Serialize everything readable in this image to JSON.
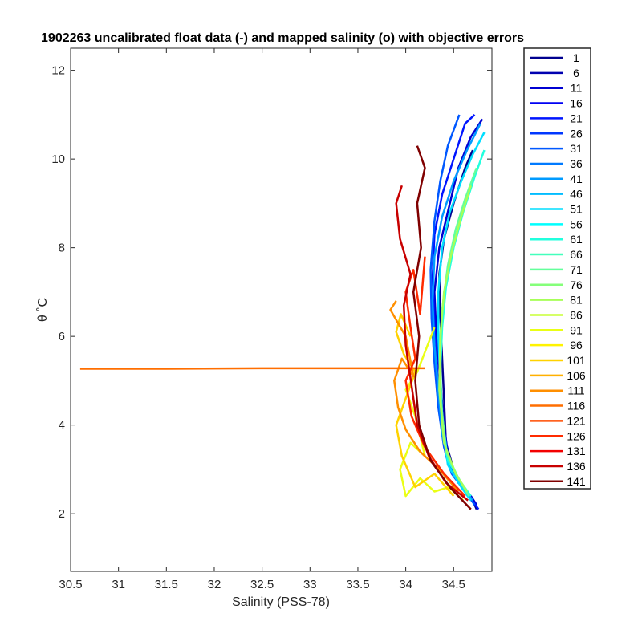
{
  "chart_data": {
    "type": "line",
    "title": "1902263 uncalibrated float data (-) and mapped salinity (o) with objective errors",
    "xlabel": "Salinity (PSS-78)",
    "ylabel": "θ ˚C",
    "xlim": [
      30.5,
      34.9
    ],
    "ylim": [
      0.7,
      12.5
    ],
    "x_ticks": [
      "30.5",
      "31",
      "31.5",
      "32",
      "32.5",
      "33",
      "33.5",
      "34",
      "34.5"
    ],
    "y_ticks": [
      "2",
      "4",
      "6",
      "8",
      "10",
      "12"
    ],
    "grid": false,
    "legend_position": "outside-right",
    "legend": [
      {
        "label": "1",
        "color": "#00008F"
      },
      {
        "label": "6",
        "color": "#0000B0"
      },
      {
        "label": "11",
        "color": "#0000D2"
      },
      {
        "label": "16",
        "color": "#0000F3"
      },
      {
        "label": "21",
        "color": "#0015FF"
      },
      {
        "label": "26",
        "color": "#0037FF"
      },
      {
        "label": "31",
        "color": "#0058FF"
      },
      {
        "label": "36",
        "color": "#007AFF"
      },
      {
        "label": "41",
        "color": "#009BFF"
      },
      {
        "label": "46",
        "color": "#00BCFF"
      },
      {
        "label": "51",
        "color": "#00DEFF"
      },
      {
        "label": "56",
        "color": "#00FFFF"
      },
      {
        "label": "61",
        "color": "#21FFDE"
      },
      {
        "label": "66",
        "color": "#43FFBC"
      },
      {
        "label": "71",
        "color": "#64FF9B"
      },
      {
        "label": "76",
        "color": "#85FF7A"
      },
      {
        "label": "81",
        "color": "#A7FF58"
      },
      {
        "label": "86",
        "color": "#C8FF37"
      },
      {
        "label": "91",
        "color": "#EAFF15"
      },
      {
        "label": "96",
        "color": "#FFF300"
      },
      {
        "label": "101",
        "color": "#FFD200"
      },
      {
        "label": "106",
        "color": "#FFB000"
      },
      {
        "label": "111",
        "color": "#FF8F00"
      },
      {
        "label": "116",
        "color": "#FF6E00"
      },
      {
        "label": "121",
        "color": "#FF4C00"
      },
      {
        "label": "126",
        "color": "#FF2B00"
      },
      {
        "label": "131",
        "color": "#F30000"
      },
      {
        "label": "136",
        "color": "#C80000"
      },
      {
        "label": "141",
        "color": "#800000"
      }
    ],
    "series": [
      {
        "color": "#00008F",
        "x": [
          34.74,
          34.7,
          34.6,
          34.5,
          34.42,
          34.4,
          34.38,
          34.36,
          34.35,
          34.4,
          34.5,
          34.62,
          34.7
        ],
        "y": [
          2.1,
          2.3,
          2.6,
          3.0,
          3.6,
          4.6,
          5.5,
          6.5,
          7.4,
          8.2,
          9.0,
          9.8,
          10.2
        ]
      },
      {
        "color": "#0000D2",
        "x": [
          34.74,
          34.68,
          34.55,
          34.45,
          34.4,
          34.36,
          34.32,
          34.3,
          34.35,
          34.45,
          34.55,
          34.68,
          34.8
        ],
        "y": [
          2.2,
          2.4,
          2.7,
          3.2,
          4.0,
          5.0,
          6.0,
          7.0,
          8.0,
          8.9,
          9.8,
          10.5,
          10.9
        ]
      },
      {
        "color": "#0015FF",
        "x": [
          34.76,
          34.66,
          34.52,
          34.42,
          34.36,
          34.33,
          34.3,
          34.28,
          34.3,
          34.38,
          34.5,
          34.62,
          34.72
        ],
        "y": [
          2.1,
          2.4,
          2.8,
          3.3,
          4.2,
          5.2,
          6.2,
          7.3,
          8.3,
          9.2,
          10.0,
          10.8,
          11.0
        ]
      },
      {
        "color": "#0058FF",
        "x": [
          34.72,
          34.62,
          34.48,
          34.4,
          34.34,
          34.3,
          34.27,
          34.26,
          34.3,
          34.36,
          34.44,
          34.56
        ],
        "y": [
          2.2,
          2.5,
          2.9,
          3.5,
          4.4,
          5.4,
          6.4,
          7.5,
          8.6,
          9.5,
          10.3,
          11.0
        ]
      },
      {
        "color": "#009BFF",
        "x": [
          34.7,
          34.6,
          34.46,
          34.38,
          34.34,
          34.3,
          34.28,
          34.3,
          34.38,
          34.5,
          34.64,
          34.78
        ],
        "y": [
          2.3,
          2.6,
          3.0,
          3.8,
          4.8,
          5.8,
          6.8,
          7.8,
          8.7,
          9.5,
          10.2,
          10.8
        ]
      },
      {
        "color": "#00DEFF",
        "x": [
          34.68,
          34.58,
          34.44,
          34.38,
          34.36,
          34.34,
          34.34,
          34.38,
          34.46,
          34.58,
          34.7,
          34.82
        ],
        "y": [
          2.3,
          2.6,
          3.1,
          4.0,
          5.0,
          6.0,
          7.0,
          8.0,
          8.8,
          9.5,
          10.1,
          10.6
        ]
      },
      {
        "color": "#21FFDE",
        "x": [
          34.68,
          34.58,
          34.44,
          34.38,
          34.36,
          34.38,
          34.42,
          34.5,
          34.6,
          34.72,
          34.82
        ],
        "y": [
          2.4,
          2.7,
          3.2,
          4.2,
          5.2,
          6.2,
          7.1,
          8.0,
          8.8,
          9.6,
          10.2
        ]
      },
      {
        "color": "#64FF9B",
        "x": [
          34.66,
          34.55,
          34.42,
          34.37,
          34.36,
          34.38,
          34.44,
          34.52,
          34.62,
          34.74
        ],
        "y": [
          2.4,
          2.8,
          3.4,
          4.5,
          5.6,
          6.6,
          7.6,
          8.4,
          9.1,
          9.8
        ]
      },
      {
        "color": "#A7FF58",
        "x": [
          34.64,
          34.52,
          34.4,
          34.35,
          34.36,
          34.4,
          34.48,
          34.58,
          34.68
        ],
        "y": [
          2.5,
          2.9,
          3.6,
          4.8,
          6.0,
          7.0,
          7.9,
          8.7,
          9.4
        ]
      },
      {
        "color": "#EAFF15",
        "x": [
          34.6,
          34.45,
          34.3,
          34.15,
          34.0,
          33.94,
          34.05,
          34.2,
          34.1,
          34.0,
          34.12,
          34.3
        ],
        "y": [
          2.3,
          2.6,
          2.5,
          2.8,
          2.4,
          3.0,
          3.6,
          3.3,
          4.2,
          4.8,
          5.2,
          6.2
        ]
      },
      {
        "color": "#FFD200",
        "x": [
          34.5,
          34.3,
          34.1,
          33.96,
          33.9,
          34.0,
          34.1,
          33.98,
          33.9,
          33.95,
          34.05
        ],
        "y": [
          2.4,
          2.9,
          2.6,
          3.3,
          4.0,
          4.6,
          5.2,
          5.6,
          6.1,
          6.5,
          6.0
        ]
      },
      {
        "color": "#FF8F00",
        "x": [
          34.55,
          34.35,
          34.15,
          34.0,
          33.92,
          33.88,
          33.96,
          34.08,
          34.0,
          33.84,
          33.9
        ],
        "y": [
          2.5,
          3.0,
          3.4,
          3.9,
          4.4,
          5.0,
          5.5,
          5.1,
          6.0,
          6.6,
          6.8
        ]
      },
      {
        "color": "#FF6E00",
        "x": [
          30.6,
          31.5,
          32.5,
          33.5,
          33.95,
          34.2
        ],
        "y": [
          5.27,
          5.27,
          5.28,
          5.28,
          5.28,
          5.28
        ]
      },
      {
        "color": "#FF2B00",
        "x": [
          34.62,
          34.4,
          34.2,
          34.06,
          34.0,
          34.1,
          34.05,
          34.0,
          34.08,
          34.15,
          34.2
        ],
        "y": [
          2.4,
          2.9,
          3.5,
          4.2,
          5.0,
          5.5,
          6.2,
          7.0,
          7.5,
          6.5,
          7.8
        ]
      },
      {
        "color": "#C80000",
        "x": [
          34.65,
          34.42,
          34.24,
          34.12,
          34.06,
          34.0,
          33.98,
          34.05,
          33.94,
          33.9,
          33.96
        ],
        "y": [
          2.3,
          2.7,
          3.3,
          4.0,
          4.9,
          5.8,
          6.7,
          7.4,
          8.2,
          9.0,
          9.4
        ]
      },
      {
        "color": "#800000",
        "x": [
          34.68,
          34.46,
          34.26,
          34.14,
          34.1,
          34.14,
          34.08,
          34.16,
          34.12,
          34.2,
          34.12
        ],
        "y": [
          2.1,
          2.6,
          3.2,
          4.0,
          5.0,
          6.0,
          7.0,
          8.0,
          9.0,
          9.8,
          10.3
        ]
      }
    ]
  }
}
